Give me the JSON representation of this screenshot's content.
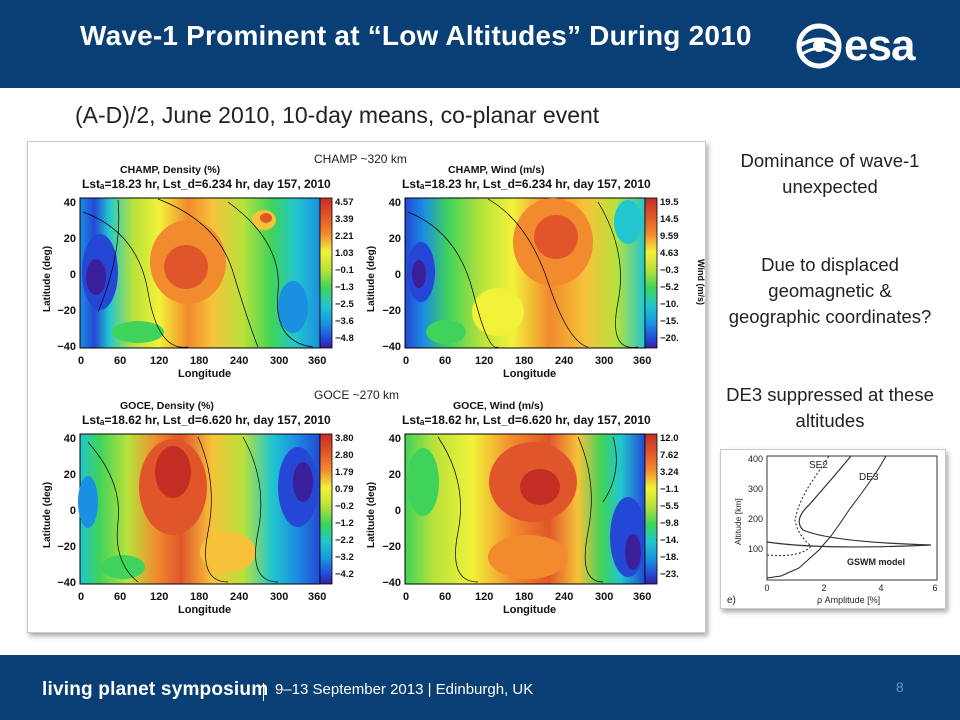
{
  "header": {
    "title": "Wave-1 Prominent at “Low Altitudes” During 2010",
    "logo_text": "esa"
  },
  "subtitle": "(A-D)/2, June 2010, 10-day means, co-planar event",
  "panel": {
    "champ_label": "CHAMP ~320 km",
    "goce_label": "GOCE ~270 km",
    "x_ticks": [
      "0",
      "60",
      "120",
      "180",
      "240",
      "300",
      "360"
    ],
    "y_ticks": [
      "40",
      "20",
      "0",
      "−20",
      "−40"
    ],
    "x_label": "Longitude",
    "y_label": "Latitude (deg)",
    "plots": [
      {
        "title": "CHAMP, Density (%)",
        "info": "Lstₐ=18.23 hr, Lst_d=6.234 hr, day 157, 2010",
        "colorbar_label": "",
        "colorbar_ticks": [
          "4.57",
          "3.39",
          "2.21",
          "1.03",
          "−0.1",
          "−1.3",
          "−2.5",
          "−3.6",
          "−4.8"
        ]
      },
      {
        "title": "CHAMP, Wind (m/s)",
        "info": "Lstₐ=18.23 hr, Lst_d=6.234 hr, day 157, 2010",
        "colorbar_label": "Wind (m/s)",
        "colorbar_ticks": [
          "19.5",
          "14.5",
          "9.59",
          "4.63",
          "−0.3",
          "−5.2",
          "−10.",
          "−15.",
          "−20."
        ]
      },
      {
        "title": "GOCE, Density (%)",
        "info": "Lstₐ=18.62 hr, Lst_d=6.620 hr, day 157, 2010",
        "colorbar_label": "",
        "colorbar_ticks": [
          "3.80",
          "2.80",
          "1.79",
          "0.79",
          "−0.2",
          "−1.2",
          "−2.2",
          "−3.2",
          "−4.2"
        ]
      },
      {
        "title": "GOCE, Wind (m/s)",
        "info": "Lstₐ=18.62 hr, Lst_d=6.620 hr, day 157, 2010",
        "colorbar_label": "",
        "colorbar_ticks": [
          "12.0",
          "7.62",
          "3.24",
          "−1.1",
          "−5.5",
          "−9.8",
          "−14.",
          "−18.",
          "−23."
        ]
      }
    ]
  },
  "side": {
    "point1": "Dominance of wave-1 unexpected",
    "point2": "Due to displaced geomagnetic & geographic coordinates?",
    "point3": "DE3 suppressed at these altitudes"
  },
  "gswm": {
    "y_label": "Altitude [km]",
    "y_ticks": [
      "400",
      "300",
      "200",
      "100"
    ],
    "x_ticks": [
      "0",
      "2",
      "4",
      "6"
    ],
    "x_label": "ρ Amplitude [%]",
    "panel_letter": "e)",
    "se2_label": "SE2",
    "de3_label": "DE3",
    "model_label": "GSWM model"
  },
  "footer": {
    "brand": "living planet symposium",
    "info": "9–13 September 2013 | Edinburgh, UK",
    "page_number": "8"
  },
  "colors": {
    "header_bg": "#0a3f76",
    "contour_palette": [
      "#3a1e9a",
      "#2447d6",
      "#1b8fe0",
      "#21c6cf",
      "#3fd35b",
      "#b8e23b",
      "#f2f23a",
      "#f7c23a",
      "#f28a2e",
      "#e0562a",
      "#c32d24"
    ]
  }
}
